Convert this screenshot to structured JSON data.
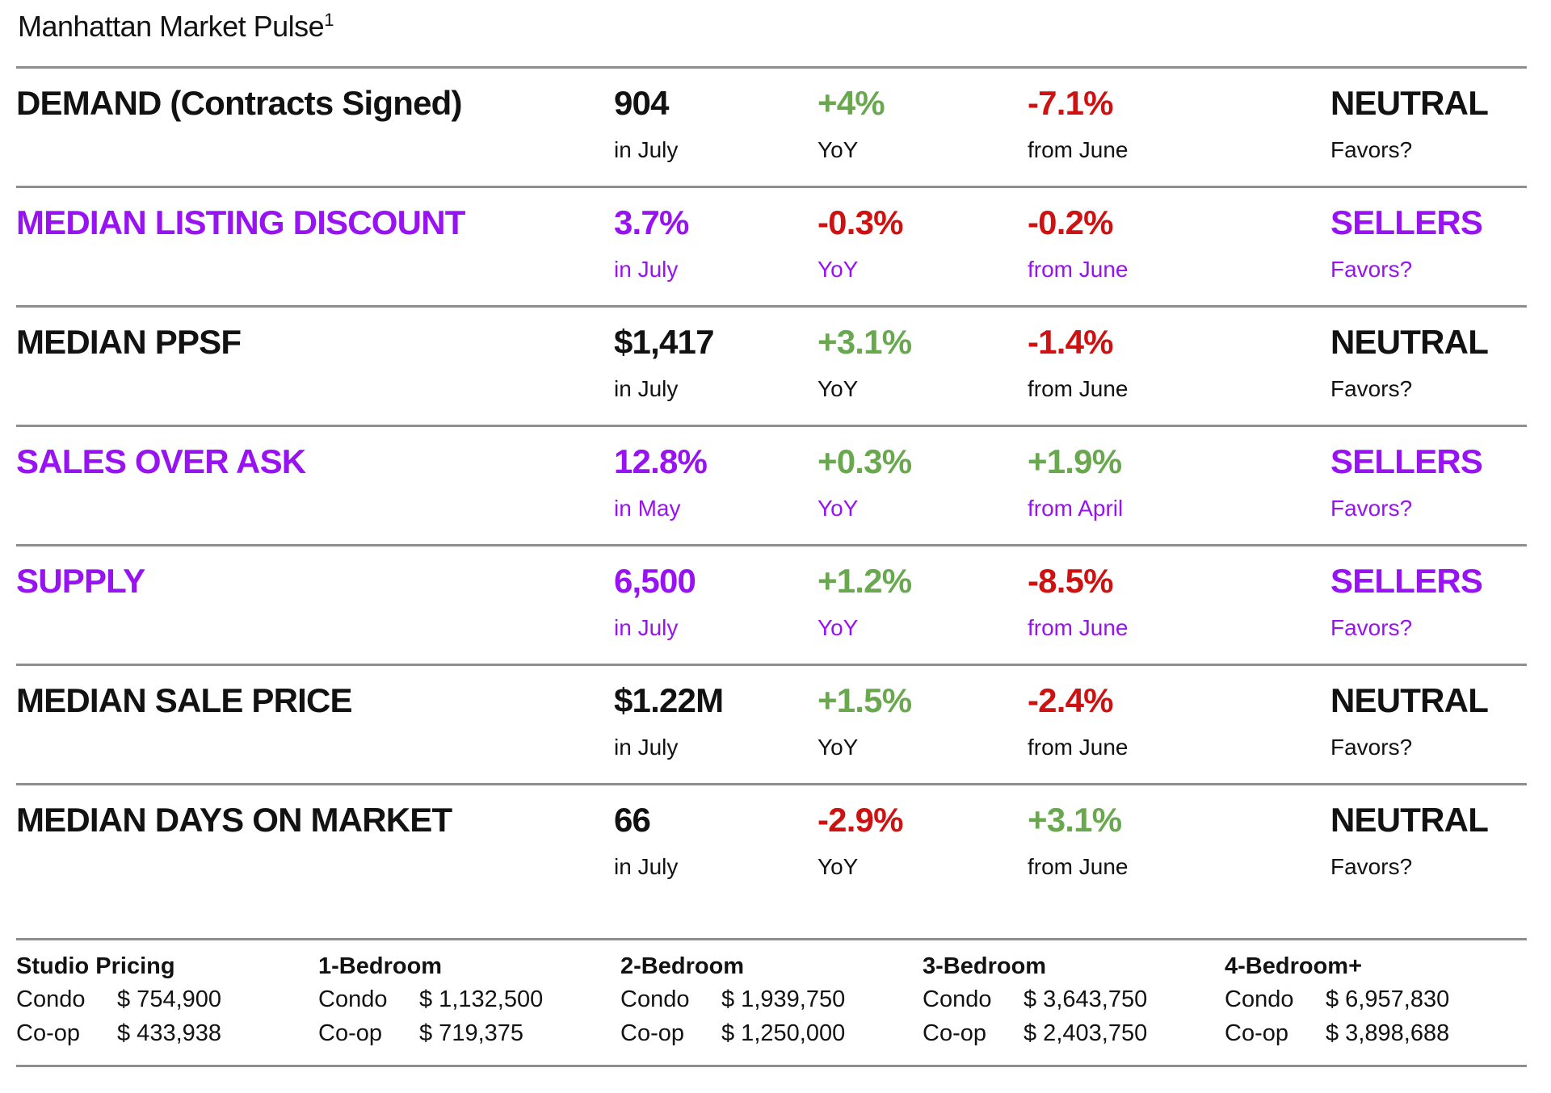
{
  "title": {
    "text": "Manhattan Market Pulse",
    "footnote_marker": "1"
  },
  "colors": {
    "purple": "#9813F2",
    "green": "#6AA84F",
    "red": "#CE1111",
    "divider": "#8E8E8E",
    "text": "#121212"
  },
  "metric_rows": [
    {
      "label": "DEMAND (Contracts Signed)",
      "theme": "neutral",
      "value": "904",
      "value_caption": "in July",
      "yoy_change": "+4%",
      "yoy_tone": "positive",
      "yoy_caption": "YoY",
      "mom_change": "-7.1%",
      "mom_tone": "negative",
      "mom_caption": "from June",
      "favors": "NEUTRAL",
      "favors_caption": "Favors?"
    },
    {
      "label": "MEDIAN LISTING DISCOUNT",
      "theme": "sellers",
      "value": "3.7%",
      "value_caption": "in July",
      "yoy_change": "-0.3%",
      "yoy_tone": "negative",
      "yoy_caption": "YoY",
      "mom_change": "-0.2%",
      "mom_tone": "negative",
      "mom_caption": "from June",
      "favors": "SELLERS",
      "favors_caption": "Favors?"
    },
    {
      "label": "MEDIAN PPSF",
      "theme": "neutral",
      "value": "$1,417",
      "value_caption": "in July",
      "yoy_change": "+3.1%",
      "yoy_tone": "positive",
      "yoy_caption": "YoY",
      "mom_change": "-1.4%",
      "mom_tone": "negative",
      "mom_caption": "from June",
      "favors": "NEUTRAL",
      "favors_caption": "Favors?"
    },
    {
      "label": "SALES OVER ASK",
      "theme": "sellers",
      "value": "12.8%",
      "value_caption": "in May",
      "yoy_change": "+0.3%",
      "yoy_tone": "positive",
      "yoy_caption": "YoY",
      "mom_change": "+1.9%",
      "mom_tone": "positive",
      "mom_caption": "from April",
      "favors": "SELLERS",
      "favors_caption": "Favors?"
    },
    {
      "label": "SUPPLY",
      "theme": "sellers",
      "value": "6,500",
      "value_caption": "in July",
      "yoy_change": "+1.2%",
      "yoy_tone": "positive",
      "yoy_caption": "YoY",
      "mom_change": "-8.5%",
      "mom_tone": "negative",
      "mom_caption": "from June",
      "favors": "SELLERS",
      "favors_caption": "Favors?"
    },
    {
      "label": "MEDIAN SALE PRICE",
      "theme": "neutral",
      "value": "$1.22M",
      "value_caption": "in July",
      "yoy_change": "+1.5%",
      "yoy_tone": "positive",
      "yoy_caption": "YoY",
      "mom_change": "-2.4%",
      "mom_tone": "negative",
      "mom_caption": "from June",
      "favors": "NEUTRAL",
      "favors_caption": "Favors?"
    },
    {
      "label": "MEDIAN DAYS ON MARKET",
      "theme": "neutral",
      "value": "66",
      "value_caption": "in July",
      "yoy_change": "-2.9%",
      "yoy_tone": "negative",
      "yoy_caption": "YoY",
      "mom_change": "+3.1%",
      "mom_tone": "positive",
      "mom_caption": "from June",
      "favors": "NEUTRAL",
      "favors_caption": "Favors?"
    }
  ],
  "pricing_groups": [
    {
      "header": "Studio Pricing",
      "rows": [
        {
          "type": "Condo",
          "price": "$ 754,900"
        },
        {
          "type": "Co-op",
          "price": "$ 433,938"
        }
      ]
    },
    {
      "header": "1-Bedroom",
      "rows": [
        {
          "type": "Condo",
          "price": "$ 1,132,500"
        },
        {
          "type": "Co-op",
          "price": "$ 719,375"
        }
      ]
    },
    {
      "header": "2-Bedroom",
      "rows": [
        {
          "type": "Condo",
          "price": "$ 1,939,750"
        },
        {
          "type": "Co-op",
          "price": "$ 1,250,000"
        }
      ]
    },
    {
      "header": "3-Bedroom",
      "rows": [
        {
          "type": "Condo",
          "price": "$ 3,643,750"
        },
        {
          "type": "Co-op",
          "price": "$ 2,403,750"
        }
      ]
    },
    {
      "header": "4-Bedroom+",
      "rows": [
        {
          "type": "Condo",
          "price": "$ 6,957,830"
        },
        {
          "type": "Co-op",
          "price": "$ 3,898,688"
        }
      ]
    }
  ]
}
